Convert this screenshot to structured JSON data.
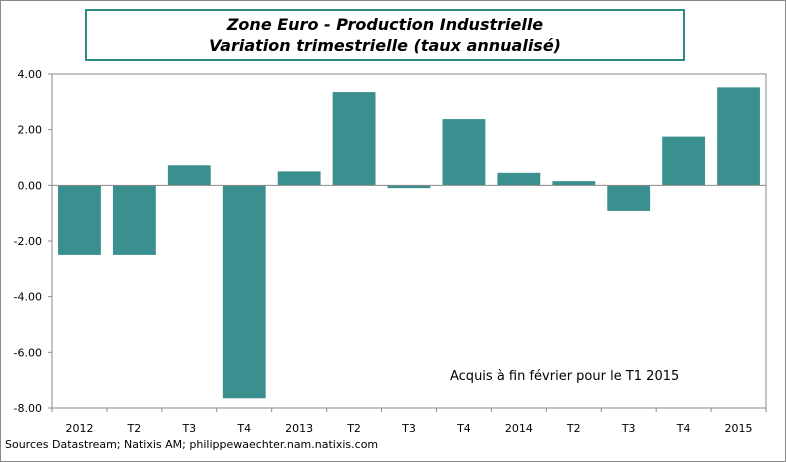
{
  "title": {
    "line1": "Zone Euro - Production Industrielle",
    "line2": "Variation trimestrielle (taux annualisé)"
  },
  "annotation": "Acquis à fin février pour le T1 2015",
  "source": "Sources Datastream; Natixis AM; philippewaechter.nam.natixis.com",
  "colors": {
    "bar": "#3a8f8f",
    "title_border": "#2e8b86"
  },
  "chart_data": {
    "type": "bar",
    "title": "Zone Euro - Production Industrielle — Variation trimestrielle (taux annualisé)",
    "xlabel": "",
    "ylabel": "",
    "categories": [
      "2012",
      "T2",
      "T3",
      "T4",
      "2013",
      "T2",
      "T3",
      "T4",
      "2014",
      "T2",
      "T3",
      "T4",
      "2015"
    ],
    "values": [
      -2.5,
      -2.5,
      0.72,
      -7.65,
      0.5,
      3.35,
      -0.1,
      2.38,
      0.45,
      0.15,
      -0.92,
      1.75,
      3.52
    ],
    "ylim": [
      -8,
      4
    ],
    "yticks": [
      4,
      2,
      0,
      -2,
      -4,
      -6,
      -8
    ],
    "ytick_labels": [
      "4.00",
      "2.00",
      "0.00",
      "-2.00",
      "-4.00",
      "-6.00",
      "-8.00"
    ],
    "grid": false,
    "legend": "none"
  }
}
